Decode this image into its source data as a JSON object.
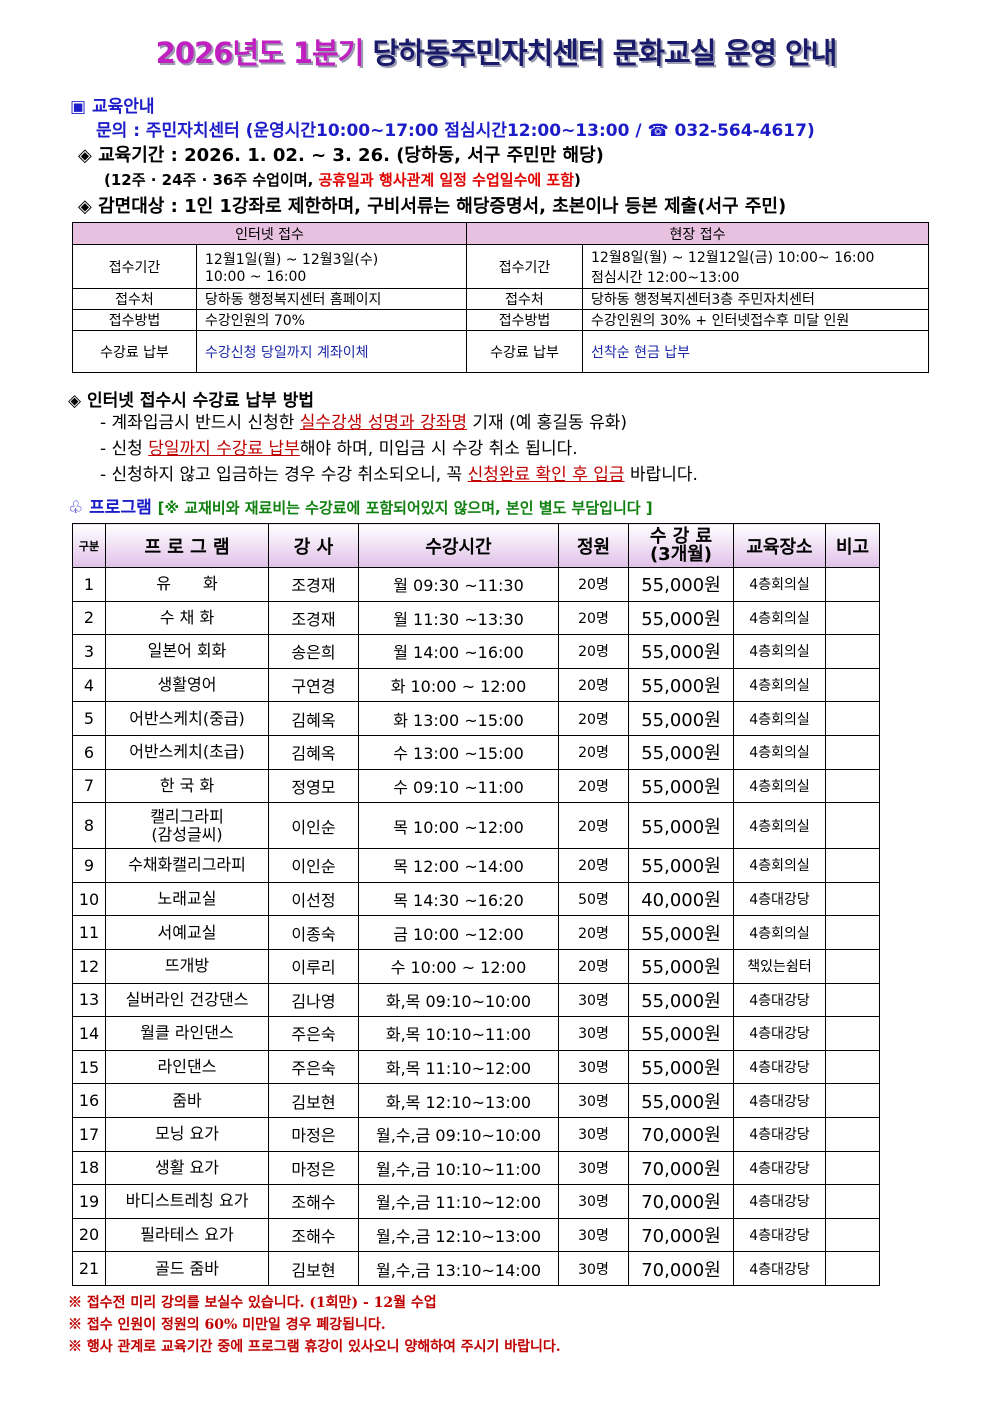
{
  "title": {
    "part1": "2026년도 1분기",
    "part2": "당하동주민자치센터 문화교실 운영 안내"
  },
  "guide": {
    "heading": "▣ 교육안내",
    "contact": "문의 : 주민자치센터 (운영시간10:00~17:00 점심시간12:00~13:00 / ☎ 032-564-4617)",
    "period": "◈ 교육기간 : 2026. 1. 02. ~ 3. 26. (당하동, 서구 주민만 해당)",
    "period_note_a": "(12주 · 24주 · 36주 수업이며, ",
    "period_note_b": "공휴일과 행사관계 일정 수업일수에 포함",
    "period_note_c": ")",
    "discount": "◈ 감면대상 : 1인 1강좌로 제한하며, 구비서류는 해당증명서, 초본이나 등본 제출(서구 주민)"
  },
  "reception": {
    "internet_header": "인터넷 접수",
    "onsite_header": "현장 접수",
    "rows": [
      {
        "label": "접수기간",
        "internet": "12월1일(월) ~ 12월3일(수)\n10:00 ~ 16:00",
        "onsite": "12월8일(월) ~ 12월12일(금) 10:00~ 16:00\n점심시간 12:00~13:00"
      },
      {
        "label": "접수처",
        "internet": "당하동 행정복지센터 홈페이지",
        "onsite": "당하동 행정복지센터3층 주민자치센터"
      },
      {
        "label": "접수방법",
        "internet": "수강인원의 70%",
        "onsite": "수강인원의 30% + 인터넷접수후 미달 인원"
      },
      {
        "label": "수강료 납부",
        "internet": "수강신청 당일까지 계좌이체",
        "onsite": "선착순 현금 납부"
      }
    ]
  },
  "payment": {
    "heading": "◈ 인터넷 접수시 수강료 납부 방법",
    "l1a": "- 계좌입금시 반드시 신청한 ",
    "l1b": "실수강생 성명과 강좌명",
    "l1c": " 기재 (예 홍길동 유화)",
    "l2a": "- 신청 ",
    "l2b": "당일까지 수강료 납부",
    "l2c": "해야 하며, 미입금 시 수강 취소 됩니다.",
    "l3a": "- 신청하지 않고 입금하는 경우 수강 취소되오니, 꼭 ",
    "l3b": "신청완료 확인 후 입금",
    "l3c": " 바랍니다."
  },
  "program": {
    "heading": "♧ 프로그램",
    "note": "[※ 교재비와 재료비는 수강료에 포함되어있지 않으며, 본인 별도 부담입니다 ]",
    "columns": [
      "구분",
      "프 로 그 램",
      "강 사",
      "수강시간",
      "정원",
      "수 강 료\n(3개월)",
      "교육장소",
      "비고"
    ],
    "rows": [
      [
        "1",
        "유　　화",
        "조경재",
        "월 09:30 ~11:30",
        "20명",
        "55,000원",
        "4층회의실",
        ""
      ],
      [
        "2",
        "수 채 화",
        "조경재",
        "월 11:30 ~13:30",
        "20명",
        "55,000원",
        "4층회의실",
        ""
      ],
      [
        "3",
        "일본어 회화",
        "송은희",
        "월 14:00 ~16:00",
        "20명",
        "55,000원",
        "4층회의실",
        ""
      ],
      [
        "4",
        "생활영어",
        "구연경",
        "화 10:00 ~ 12:00",
        "20명",
        "55,000원",
        "4층회의실",
        ""
      ],
      [
        "5",
        "어반스케치(중급)",
        "김혜옥",
        "화 13:00 ~15:00",
        "20명",
        "55,000원",
        "4층회의실",
        ""
      ],
      [
        "6",
        "어반스케치(초급)",
        "김혜옥",
        "수 13:00 ~15:00",
        "20명",
        "55,000원",
        "4층회의실",
        ""
      ],
      [
        "7",
        "한 국 화",
        "정영모",
        "수 09:10 ~11:00",
        "20명",
        "55,000원",
        "4층회의실",
        ""
      ],
      [
        "8",
        "캘리그라피\n(감성글씨)",
        "이인순",
        "목 10:00 ~12:00",
        "20명",
        "55,000원",
        "4층회의실",
        ""
      ],
      [
        "9",
        "수채화캘리그라피",
        "이인순",
        "목 12:00 ~14:00",
        "20명",
        "55,000원",
        "4층회의실",
        ""
      ],
      [
        "10",
        "노래교실",
        "이선정",
        "목 14:30 ~16:20",
        "50명",
        "40,000원",
        "4층대강당",
        ""
      ],
      [
        "11",
        "서예교실",
        "이종숙",
        "금 10:00 ~12:00",
        "20명",
        "55,000원",
        "4층회의실",
        ""
      ],
      [
        "12",
        "뜨개방",
        "이루리",
        "수 10:00 ~ 12:00",
        "20명",
        "55,000원",
        "책있는쉼터",
        ""
      ],
      [
        "13",
        "실버라인 건강댄스",
        "김나영",
        "화,목 09:10~10:00",
        "30명",
        "55,000원",
        "4층대강당",
        ""
      ],
      [
        "14",
        "월클 라인댄스",
        "주은숙",
        "화,목 10:10~11:00",
        "30명",
        "55,000원",
        "4층대강당",
        ""
      ],
      [
        "15",
        "라인댄스",
        "주은숙",
        "화,목 11:10~12:00",
        "30명",
        "55,000원",
        "4층대강당",
        ""
      ],
      [
        "16",
        "줌바",
        "김보현",
        "화,목 12:10~13:00",
        "30명",
        "55,000원",
        "4층대강당",
        ""
      ],
      [
        "17",
        "모닝 요가",
        "마정은",
        "월,수,금 09:10~10:00",
        "30명",
        "70,000원",
        "4층대강당",
        ""
      ],
      [
        "18",
        "생활 요가",
        "마정은",
        "월,수,금 10:10~11:00",
        "30명",
        "70,000원",
        "4층대강당",
        ""
      ],
      [
        "19",
        "바디스트레칭 요가",
        "조해수",
        "월,수,금 11:10~12:00",
        "30명",
        "70,000원",
        "4층대강당",
        ""
      ],
      [
        "20",
        "필라테스 요가",
        "조해수",
        "월,수,금 12:10~13:00",
        "30명",
        "70,000원",
        "4층대강당",
        ""
      ],
      [
        "21",
        "골드 줌바",
        "김보현",
        "월,수,금 13:10~14:00",
        "30명",
        "70,000원",
        "4층대강당",
        ""
      ]
    ]
  },
  "notes": [
    "※ 접수전 미리 강의를 보실수 있습니다. (1회만) - 12월 수업",
    "※ 접수 인원이 정원의 60% 미만일 경우 폐강됩니다.",
    "※ 행사 관계로 교육기간 중에 프로그램 휴강이 있사오니 양해하여 주시기 바랍니다."
  ]
}
